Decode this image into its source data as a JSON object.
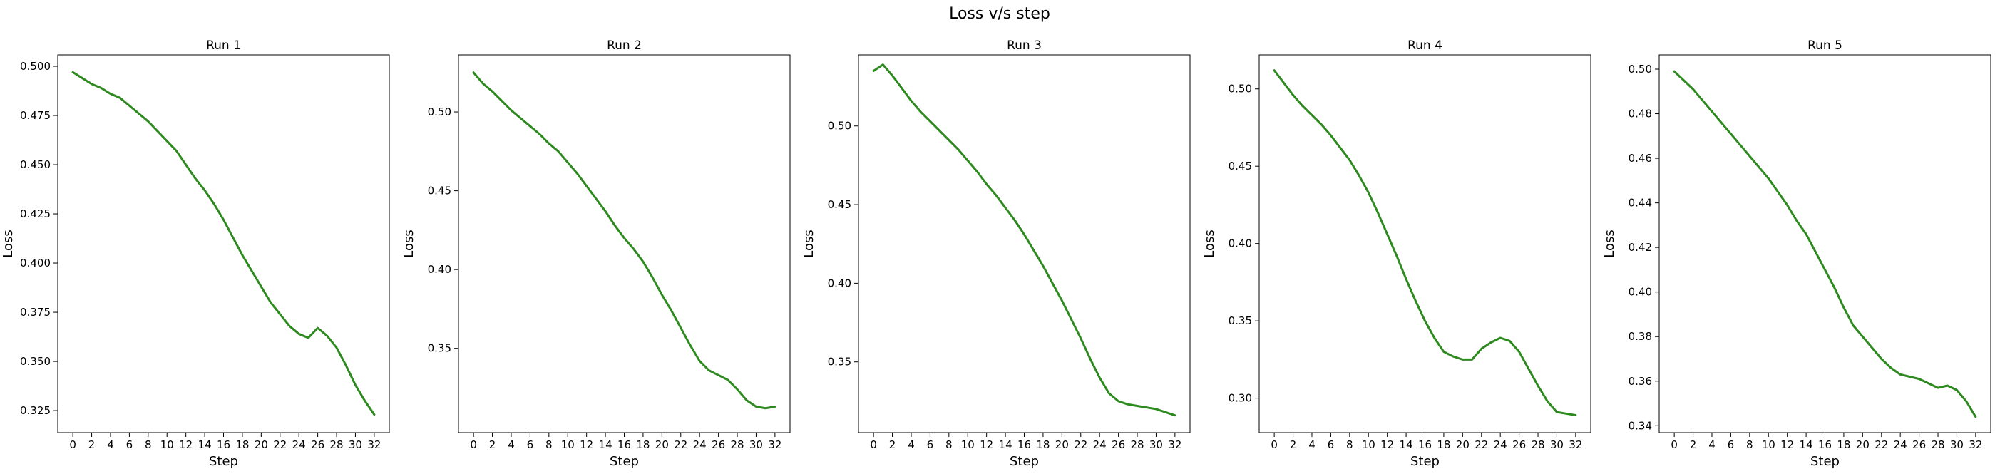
{
  "figure": {
    "title": "Loss v/s step"
  },
  "chart_data": [
    {
      "type": "line",
      "title": "Run 1",
      "xlabel": "Step",
      "ylabel": "Loss",
      "xlim": [
        -1.6,
        33.6
      ],
      "ylim": [
        0.3138,
        0.5058
      ],
      "xticks": [
        0,
        2,
        4,
        6,
        8,
        10,
        12,
        14,
        16,
        18,
        20,
        22,
        24,
        26,
        28,
        30,
        32
      ],
      "yticks": [
        0.325,
        0.35,
        0.375,
        0.4,
        0.425,
        0.45,
        0.475,
        0.5
      ],
      "ytick_labels": [
        "0.325",
        "0.350",
        "0.375",
        "0.400",
        "0.425",
        "0.450",
        "0.475",
        "0.500"
      ],
      "color": "#2d8a1e",
      "series": [
        {
          "x": [
            0,
            1,
            2,
            3,
            4,
            5,
            6,
            7,
            8,
            9,
            10,
            11,
            12,
            13,
            14,
            15,
            16,
            17,
            18,
            19,
            20,
            21,
            22,
            23,
            24,
            25,
            26,
            27,
            28,
            29,
            30,
            31,
            32
          ],
          "y": [
            0.497,
            0.494,
            0.491,
            0.489,
            0.486,
            0.484,
            0.48,
            0.476,
            0.472,
            0.467,
            0.462,
            0.457,
            0.45,
            0.443,
            0.437,
            0.43,
            0.422,
            0.413,
            0.404,
            0.396,
            0.388,
            0.38,
            0.374,
            0.368,
            0.364,
            0.362,
            0.367,
            0.363,
            0.357,
            0.348,
            0.338,
            0.33,
            0.323
          ]
        }
      ]
    },
    {
      "type": "line",
      "title": "Run 2",
      "xlabel": "Step",
      "ylabel": "Loss",
      "xlim": [
        -1.6,
        33.6
      ],
      "ylim": [
        0.2965,
        0.5362
      ],
      "xticks": [
        0,
        2,
        4,
        6,
        8,
        10,
        12,
        14,
        16,
        18,
        20,
        22,
        24,
        26,
        28,
        30,
        32
      ],
      "yticks": [
        0.35,
        0.4,
        0.45,
        0.5
      ],
      "ytick_labels": [
        "0.35",
        "0.40",
        "0.45",
        "0.50"
      ],
      "color": "#2d8a1e",
      "series": [
        {
          "x": [
            0,
            1,
            2,
            3,
            4,
            5,
            6,
            7,
            8,
            9,
            10,
            11,
            12,
            13,
            14,
            15,
            16,
            17,
            18,
            19,
            20,
            21,
            22,
            23,
            24,
            25,
            26,
            27,
            28,
            29,
            30,
            31,
            32
          ],
          "y": [
            0.525,
            0.518,
            0.513,
            0.507,
            0.501,
            0.496,
            0.491,
            0.486,
            0.48,
            0.475,
            0.468,
            0.461,
            0.453,
            0.445,
            0.437,
            0.428,
            0.42,
            0.413,
            0.405,
            0.395,
            0.384,
            0.374,
            0.363,
            0.352,
            0.342,
            0.336,
            0.333,
            0.33,
            0.324,
            0.317,
            0.313,
            0.312,
            0.313
          ]
        }
      ]
    },
    {
      "type": "line",
      "title": "Run 3",
      "xlabel": "Step",
      "ylabel": "Loss",
      "xlim": [
        -1.6,
        33.6
      ],
      "ylim": [
        0.305,
        0.5452
      ],
      "xticks": [
        0,
        2,
        4,
        6,
        8,
        10,
        12,
        14,
        16,
        18,
        20,
        22,
        24,
        26,
        28,
        30,
        32
      ],
      "yticks": [
        0.35,
        0.4,
        0.45,
        0.5
      ],
      "ytick_labels": [
        "0.35",
        "0.40",
        "0.45",
        "0.50"
      ],
      "color": "#2d8a1e",
      "series": [
        {
          "x": [
            0,
            1,
            2,
            3,
            4,
            5,
            6,
            7,
            8,
            9,
            10,
            11,
            12,
            13,
            14,
            15,
            16,
            17,
            18,
            19,
            20,
            21,
            22,
            23,
            24,
            25,
            26,
            27,
            28,
            29,
            30,
            31,
            32
          ],
          "y": [
            0.535,
            0.539,
            0.532,
            0.524,
            0.516,
            0.509,
            0.503,
            0.497,
            0.491,
            0.485,
            0.478,
            0.471,
            0.463,
            0.456,
            0.448,
            0.44,
            0.431,
            0.421,
            0.411,
            0.4,
            0.389,
            0.377,
            0.365,
            0.352,
            0.34,
            0.33,
            0.325,
            0.323,
            0.322,
            0.321,
            0.32,
            0.318,
            0.316
          ]
        }
      ]
    },
    {
      "type": "line",
      "title": "Run 4",
      "xlabel": "Step",
      "ylabel": "Loss",
      "xlim": [
        -1.6,
        33.6
      ],
      "ylim": [
        0.2777,
        0.522
      ],
      "xticks": [
        0,
        2,
        4,
        6,
        8,
        10,
        12,
        14,
        16,
        18,
        20,
        22,
        24,
        26,
        28,
        30,
        32
      ],
      "yticks": [
        0.3,
        0.35,
        0.4,
        0.45,
        0.5
      ],
      "ytick_labels": [
        "0.30",
        "0.35",
        "0.40",
        "0.45",
        "0.50"
      ],
      "color": "#2d8a1e",
      "series": [
        {
          "x": [
            0,
            1,
            2,
            3,
            4,
            5,
            6,
            7,
            8,
            9,
            10,
            11,
            12,
            13,
            14,
            15,
            16,
            17,
            18,
            19,
            20,
            21,
            22,
            23,
            24,
            25,
            26,
            27,
            28,
            29,
            30,
            31,
            32
          ],
          "y": [
            0.512,
            0.504,
            0.496,
            0.489,
            0.483,
            0.477,
            0.47,
            0.462,
            0.454,
            0.444,
            0.433,
            0.42,
            0.406,
            0.392,
            0.377,
            0.363,
            0.35,
            0.339,
            0.33,
            0.327,
            0.325,
            0.325,
            0.332,
            0.336,
            0.339,
            0.337,
            0.33,
            0.319,
            0.308,
            0.298,
            0.291,
            0.29,
            0.289
          ]
        }
      ]
    },
    {
      "type": "line",
      "title": "Run 5",
      "xlabel": "Step",
      "ylabel": "Loss",
      "xlim": [
        -1.6,
        33.6
      ],
      "ylim": [
        0.3369,
        0.5064
      ],
      "xticks": [
        0,
        2,
        4,
        6,
        8,
        10,
        12,
        14,
        16,
        18,
        20,
        22,
        24,
        26,
        28,
        30,
        32
      ],
      "yticks": [
        0.34,
        0.36,
        0.38,
        0.4,
        0.42,
        0.44,
        0.46,
        0.48,
        0.5
      ],
      "ytick_labels": [
        "0.34",
        "0.36",
        "0.38",
        "0.40",
        "0.42",
        "0.44",
        "0.46",
        "0.48",
        "0.50"
      ],
      "color": "#2d8a1e",
      "series": [
        {
          "x": [
            0,
            1,
            2,
            3,
            4,
            5,
            6,
            7,
            8,
            9,
            10,
            11,
            12,
            13,
            14,
            15,
            16,
            17,
            18,
            19,
            20,
            21,
            22,
            23,
            24,
            25,
            26,
            27,
            28,
            29,
            30,
            31,
            32
          ],
          "y": [
            0.499,
            0.495,
            0.491,
            0.486,
            0.481,
            0.476,
            0.471,
            0.466,
            0.461,
            0.456,
            0.451,
            0.445,
            0.439,
            0.432,
            0.426,
            0.418,
            0.41,
            0.402,
            0.393,
            0.385,
            0.38,
            0.375,
            0.37,
            0.366,
            0.363,
            0.362,
            0.361,
            0.359,
            0.357,
            0.358,
            0.356,
            0.351,
            0.344
          ]
        }
      ]
    }
  ]
}
